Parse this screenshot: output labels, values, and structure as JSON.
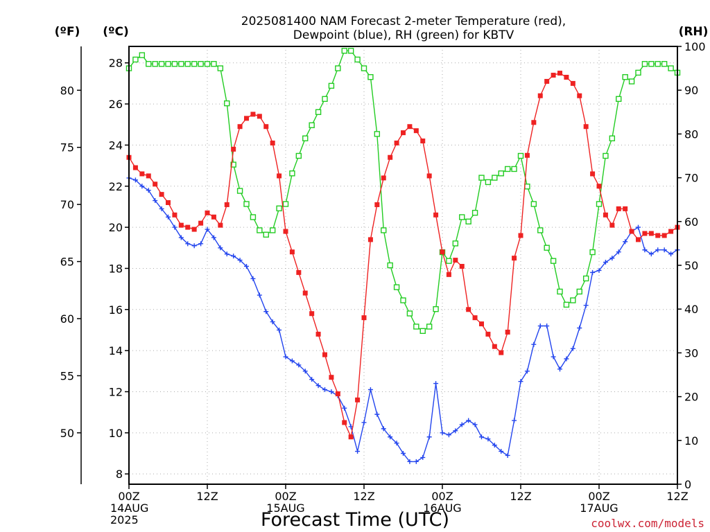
{
  "chart_data": {
    "type": "line",
    "title": [
      "2025081400 NAM Forecast 2-meter Temperature (red),",
      "Dewpoint (blue), RH (green) for KBTV"
    ],
    "xlabel": "Forecast Time (UTC)",
    "units": {
      "f": "(ºF)",
      "c": "(ºC)",
      "rh": "(RH)"
    },
    "credit": "coolwx.com/models",
    "x_hours_range": [
      0,
      84
    ],
    "c_range": [
      7.5,
      28.8
    ],
    "rh_range": [
      0,
      100
    ],
    "y_ticks_c": [
      8,
      10,
      12,
      14,
      16,
      18,
      20,
      22,
      24,
      26,
      28
    ],
    "y_ticks_f": [
      50,
      55,
      60,
      65,
      70,
      75,
      80
    ],
    "y_ticks_rh": [
      0,
      10,
      20,
      30,
      40,
      50,
      60,
      70,
      80,
      90,
      100
    ],
    "x_ticks": [
      {
        "hour": 0,
        "lines": [
          "00Z",
          "14AUG",
          "2025"
        ]
      },
      {
        "hour": 12,
        "lines": [
          "12Z"
        ]
      },
      {
        "hour": 24,
        "lines": [
          "00Z",
          "15AUG"
        ]
      },
      {
        "hour": 36,
        "lines": [
          "12Z"
        ]
      },
      {
        "hour": 48,
        "lines": [
          "00Z",
          "16AUG"
        ]
      },
      {
        "hour": 60,
        "lines": [
          "12Z"
        ]
      },
      {
        "hour": 72,
        "lines": [
          "00Z",
          "17AUG"
        ]
      },
      {
        "hour": 84,
        "lines": [
          "12Z"
        ]
      }
    ],
    "series": [
      {
        "name": "Temperature",
        "unit": "°C",
        "color": "#ee2222",
        "marker": "filled-square",
        "x": [
          0,
          1,
          2,
          3,
          4,
          5,
          6,
          7,
          8,
          9,
          10,
          11,
          12,
          13,
          14,
          15,
          16,
          17,
          18,
          19,
          20,
          21,
          22,
          23,
          24,
          25,
          26,
          27,
          28,
          29,
          30,
          31,
          32,
          33,
          34,
          35,
          36,
          37,
          38,
          39,
          40,
          41,
          42,
          43,
          44,
          45,
          46,
          47,
          48,
          49,
          50,
          51,
          52,
          53,
          54,
          55,
          56,
          57,
          58,
          59,
          60,
          61,
          62,
          63,
          64,
          65,
          66,
          67,
          68,
          69,
          70,
          71,
          72,
          73,
          74,
          75,
          76,
          77,
          78,
          79,
          80,
          81,
          82,
          83,
          84
        ],
        "values": [
          23.4,
          22.9,
          22.6,
          22.5,
          22.1,
          21.6,
          21.2,
          20.6,
          20.1,
          20.0,
          19.9,
          20.2,
          20.7,
          20.5,
          20.1,
          21.1,
          23.8,
          24.9,
          25.3,
          25.5,
          25.4,
          24.9,
          24.1,
          22.5,
          19.8,
          18.8,
          17.8,
          16.8,
          15.8,
          14.8,
          13.8,
          12.7,
          11.9,
          10.5,
          9.8,
          11.6,
          15.6,
          19.4,
          21.1,
          22.4,
          23.4,
          24.1,
          24.6,
          24.9,
          24.7,
          24.2,
          22.5,
          20.6,
          18.8,
          17.7,
          18.4,
          18.1,
          16.0,
          15.6,
          15.3,
          14.8,
          14.2,
          13.9,
          14.9,
          18.5,
          19.6,
          23.5,
          25.1,
          26.4,
          27.1,
          27.4,
          27.5,
          27.3,
          27.0,
          26.4,
          24.9,
          22.6,
          22.0,
          20.6,
          20.1,
          20.9,
          20.9,
          19.8,
          19.4,
          19.7,
          19.7,
          19.6,
          19.6,
          19.8,
          20.0
        ]
      },
      {
        "name": "Dewpoint",
        "unit": "°C",
        "color": "#2244ee",
        "marker": "plus",
        "x": [
          0,
          1,
          2,
          3,
          4,
          5,
          6,
          7,
          8,
          9,
          10,
          11,
          12,
          13,
          14,
          15,
          16,
          17,
          18,
          19,
          20,
          21,
          22,
          23,
          24,
          25,
          26,
          27,
          28,
          29,
          30,
          31,
          32,
          33,
          34,
          35,
          36,
          37,
          38,
          39,
          40,
          41,
          42,
          43,
          44,
          45,
          46,
          47,
          48,
          49,
          50,
          51,
          52,
          53,
          54,
          55,
          56,
          57,
          58,
          59,
          60,
          61,
          62,
          63,
          64,
          65,
          66,
          67,
          68,
          69,
          70,
          71,
          72,
          73,
          74,
          75,
          76,
          77,
          78,
          79,
          80,
          81,
          82,
          83,
          84
        ],
        "values": [
          22.4,
          22.3,
          22.0,
          21.8,
          21.3,
          20.9,
          20.5,
          20.0,
          19.5,
          19.2,
          19.1,
          19.2,
          19.9,
          19.5,
          19.0,
          18.7,
          18.6,
          18.4,
          18.1,
          17.5,
          16.7,
          15.9,
          15.4,
          15.0,
          13.7,
          13.5,
          13.3,
          13.0,
          12.6,
          12.3,
          12.1,
          12.0,
          11.8,
          11.2,
          10.3,
          9.1,
          10.5,
          12.1,
          10.9,
          10.2,
          9.8,
          9.5,
          9.0,
          8.6,
          8.6,
          8.8,
          9.8,
          12.4,
          10.0,
          9.9,
          10.1,
          10.4,
          10.6,
          10.4,
          9.8,
          9.7,
          9.4,
          9.1,
          8.9,
          10.6,
          12.5,
          13.0,
          14.3,
          15.2,
          15.2,
          13.7,
          13.1,
          13.6,
          14.1,
          15.1,
          16.2,
          17.8,
          17.9,
          18.3,
          18.5,
          18.8,
          19.3,
          19.8,
          20.0,
          18.9,
          18.7,
          18.9,
          18.9,
          18.7,
          18.9
        ]
      },
      {
        "name": "RH",
        "unit": "%",
        "color": "#22cc22",
        "marker": "open-square",
        "x": [
          0,
          1,
          2,
          3,
          4,
          5,
          6,
          7,
          8,
          9,
          10,
          11,
          12,
          13,
          14,
          15,
          16,
          17,
          18,
          19,
          20,
          21,
          22,
          23,
          24,
          25,
          26,
          27,
          28,
          29,
          30,
          31,
          32,
          33,
          34,
          35,
          36,
          37,
          38,
          39,
          40,
          41,
          42,
          43,
          44,
          45,
          46,
          47,
          48,
          49,
          50,
          51,
          52,
          53,
          54,
          55,
          56,
          57,
          58,
          59,
          60,
          61,
          62,
          63,
          64,
          65,
          66,
          67,
          68,
          69,
          70,
          71,
          72,
          73,
          74,
          75,
          76,
          77,
          78,
          79,
          80,
          81,
          82,
          83,
          84
        ],
        "values": [
          95,
          97,
          98,
          96,
          96,
          96,
          96,
          96,
          96,
          96,
          96,
          96,
          96,
          96,
          95,
          87,
          73,
          67,
          64,
          61,
          58,
          57,
          58,
          63,
          64,
          71,
          75,
          79,
          82,
          85,
          88,
          91,
          95,
          99,
          99,
          97,
          95,
          93,
          80,
          58,
          50,
          45,
          42,
          39,
          36,
          35,
          36,
          40,
          53,
          51,
          55,
          61,
          60,
          62,
          70,
          69,
          70,
          71,
          72,
          72,
          75,
          68,
          64,
          58,
          54,
          51,
          44,
          41,
          42,
          44,
          47,
          53,
          64,
          75,
          79,
          88,
          93,
          92,
          94,
          96,
          96,
          96,
          96,
          95,
          94
        ]
      }
    ]
  }
}
